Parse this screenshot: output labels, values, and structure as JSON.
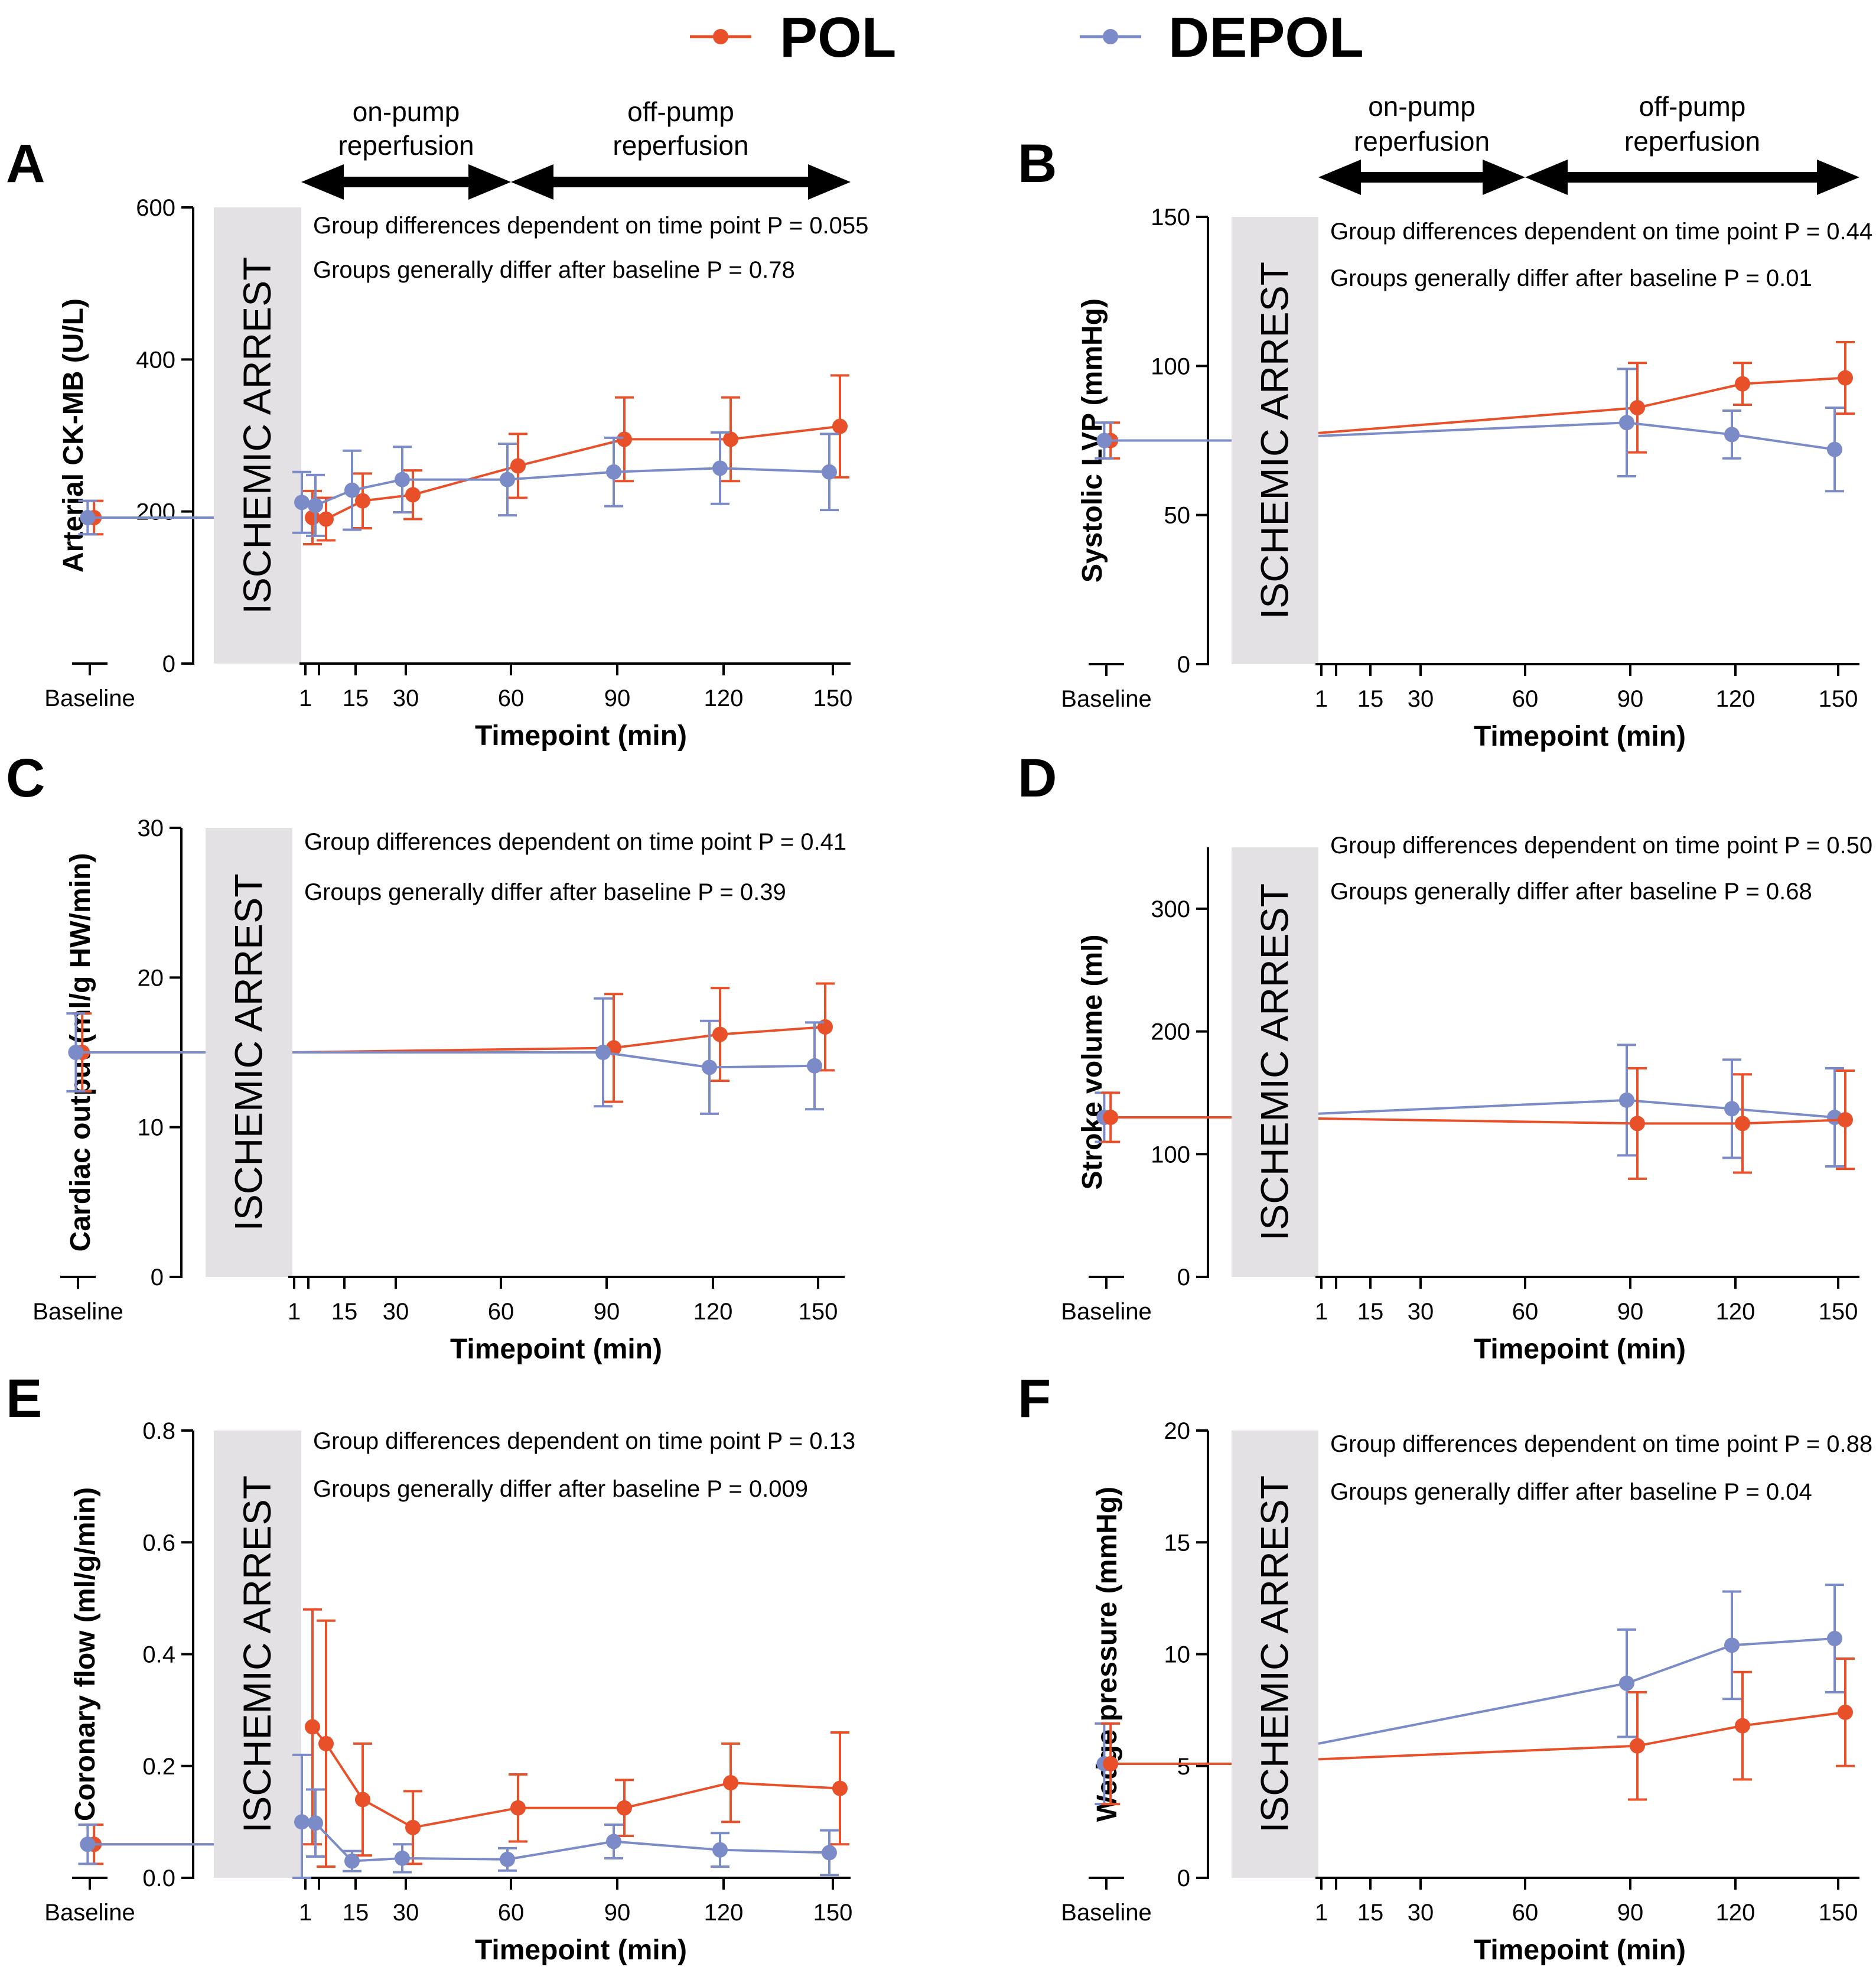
{
  "legend": {
    "pol": {
      "label": "POL",
      "color": "#e8502a"
    },
    "depol": {
      "label": "DEPOL",
      "color": "#7b8bc8"
    }
  },
  "colors": {
    "arrest_box": "#e3e1e4",
    "pol": "#e8502a",
    "depol": "#7b8bc8"
  },
  "shared": {
    "arrest_label": "ISCHEMIC ARREST",
    "xlabel": "Timepoint (min)",
    "on_pump_label": [
      "on-pump",
      "reperfusion"
    ],
    "off_pump_label": [
      "off-pump",
      "reperfusion"
    ],
    "ann_prefix_time": "Group differences dependent on time point",
    "ann_prefix_base": "Groups generally differ after baseline"
  },
  "chart_data": [
    {
      "panel": "A",
      "type": "line",
      "xcfg": 1,
      "arrows": true,
      "ylabel": "Arterial CK-MB (U/L)",
      "ylim": [
        0,
        600
      ],
      "yticks": [
        0,
        200,
        400,
        600
      ],
      "yticklabels": [
        "0",
        "200",
        "400",
        "600"
      ],
      "p_time": "P = 0.055",
      "p_base": "P = 0.78",
      "xticks": [
        "Baseline",
        "1",
        "15",
        "30",
        "60",
        "90",
        "120",
        "150"
      ],
      "series": [
        {
          "name": "POL",
          "color": "#e8502a",
          "baseline": [
            192,
            22
          ],
          "x": [
            1,
            10,
            15,
            30,
            60,
            90,
            120,
            150
          ],
          "y": [
            192,
            190,
            214,
            222,
            260,
            295,
            295,
            312
          ],
          "err": [
            35,
            28,
            36,
            32,
            42,
            55,
            55,
            67
          ]
        },
        {
          "name": "DEPOL",
          "color": "#7b8bc8",
          "baseline": [
            192,
            22
          ],
          "x": [
            1,
            10,
            15,
            30,
            60,
            90,
            120,
            150
          ],
          "y": [
            212,
            208,
            228,
            242,
            242,
            252,
            257,
            252
          ],
          "err": [
            40,
            40,
            52,
            43,
            47,
            45,
            47,
            50
          ]
        }
      ]
    },
    {
      "panel": "B",
      "type": "line",
      "xcfg": 2,
      "arrows": true,
      "ylabel": "Systolic LVP (mmHg)",
      "ylim": [
        0,
        150
      ],
      "yticks": [
        0,
        50,
        100,
        150
      ],
      "yticklabels": [
        "0",
        "50",
        "100",
        "150"
      ],
      "p_time": "P = 0.44",
      "p_base": "P = 0.01",
      "xticks": [
        "Baseline",
        "1",
        "15",
        "30",
        "60",
        "90",
        "120",
        "150"
      ],
      "series": [
        {
          "name": "POL",
          "color": "#e8502a",
          "baseline": [
            75,
            6
          ],
          "start": 77.5,
          "x": [
            90,
            120,
            150
          ],
          "y": [
            86,
            94,
            96
          ],
          "err": [
            15,
            7,
            12
          ]
        },
        {
          "name": "DEPOL",
          "color": "#7b8bc8",
          "baseline": [
            75,
            6
          ],
          "start": 76.5,
          "x": [
            90,
            120,
            150
          ],
          "y": [
            81,
            77,
            72
          ],
          "err": [
            18,
            8,
            14
          ]
        }
      ]
    },
    {
      "panel": "C",
      "type": "line",
      "xcfg": 3,
      "arrows": false,
      "ylabel": "Cardiac output (ml/g HW/min)",
      "ylim": [
        0,
        30
      ],
      "yticks": [
        0,
        10,
        20,
        30
      ],
      "yticklabels": [
        "0",
        "10",
        "20",
        "30"
      ],
      "p_time": "P = 0.41",
      "p_base": "P = 0.39",
      "xticks": [
        "Baseline",
        "1",
        "15",
        "30",
        "60",
        "90",
        "120",
        "150"
      ],
      "series": [
        {
          "name": "POL",
          "color": "#e8502a",
          "baseline": [
            15,
            2.6
          ],
          "start": 15,
          "x": [
            90,
            120,
            150
          ],
          "y": [
            15.3,
            16.2,
            16.7
          ],
          "err": [
            3.6,
            3.1,
            2.9
          ]
        },
        {
          "name": "DEPOL",
          "color": "#7b8bc8",
          "baseline": [
            15,
            2.6
          ],
          "start": 15,
          "x": [
            90,
            120,
            150
          ],
          "y": [
            15,
            14,
            14.1
          ],
          "err": [
            3.6,
            3.1,
            2.9
          ]
        }
      ]
    },
    {
      "panel": "D",
      "type": "line",
      "xcfg": 2,
      "arrows": false,
      "ylabel": "Stroke volume (ml)",
      "ylim": [
        0,
        350
      ],
      "yticks": [
        0,
        100,
        200,
        300
      ],
      "yticklabels": [
        "0",
        "100",
        "200",
        "300"
      ],
      "p_time": "P = 0.50",
      "p_base": "P = 0.68",
      "xticks": [
        "Baseline",
        "1",
        "15",
        "30",
        "60",
        "90",
        "120",
        "150"
      ],
      "series": [
        {
          "name": "DEPOL",
          "color": "#7b8bc8",
          "baseline": [
            130,
            20
          ],
          "start": 133,
          "x": [
            90,
            120,
            150
          ],
          "y": [
            144,
            137,
            130
          ],
          "err": [
            45,
            40,
            40
          ]
        },
        {
          "name": "POL",
          "color": "#e8502a",
          "baseline": [
            130,
            20
          ],
          "start": 129,
          "x": [
            90,
            120,
            150
          ],
          "y": [
            125,
            125,
            128
          ],
          "err": [
            45,
            40,
            40
          ]
        }
      ]
    },
    {
      "panel": "E",
      "type": "line",
      "xcfg": 1,
      "arrows": false,
      "ylabel": "Coronary flow (ml/g/min)",
      "ylim": [
        0,
        0.8
      ],
      "yticks": [
        0,
        0.2,
        0.4,
        0.6,
        0.8
      ],
      "yticklabels": [
        "0.0",
        "0.2",
        "0.4",
        "0.6",
        "0.8"
      ],
      "p_time": "P = 0.13",
      "p_base": "P = 0.009",
      "xticks": [
        "Baseline",
        "1",
        "15",
        "30",
        "60",
        "90",
        "120",
        "150"
      ],
      "series": [
        {
          "name": "POL",
          "color": "#e8502a",
          "baseline": [
            0.06,
            0.035
          ],
          "x": [
            1,
            10,
            15,
            30,
            60,
            90,
            120,
            150
          ],
          "y": [
            0.27,
            0.24,
            0.14,
            0.09,
            0.125,
            0.125,
            0.17,
            0.16
          ],
          "err": [
            0.21,
            0.22,
            0.1,
            0.065,
            0.06,
            0.05,
            0.07,
            0.1
          ]
        },
        {
          "name": "DEPOL",
          "color": "#7b8bc8",
          "baseline": [
            0.06,
            0.035
          ],
          "x": [
            1,
            10,
            15,
            30,
            60,
            90,
            120,
            150
          ],
          "y": [
            0.1,
            0.098,
            0.03,
            0.035,
            0.033,
            0.065,
            0.05,
            0.045
          ],
          "err": [
            0.12,
            0.06,
            0.018,
            0.025,
            0.02,
            0.03,
            0.03,
            0.04
          ]
        }
      ]
    },
    {
      "panel": "F",
      "type": "line",
      "xcfg": 2,
      "arrows": false,
      "ylabel": "Wedge pressure (mmHg)",
      "ylim": [
        0,
        20
      ],
      "yticks": [
        0,
        5,
        10,
        15,
        20
      ],
      "yticklabels": [
        "0",
        "5",
        "10",
        "15",
        "20"
      ],
      "p_time": "P = 0.88",
      "p_base": "P = 0.04",
      "xticks": [
        "Baseline",
        "1",
        "15",
        "30",
        "60",
        "90",
        "120",
        "150"
      ],
      "series": [
        {
          "name": "DEPOL",
          "color": "#7b8bc8",
          "baseline": [
            5.1,
            1.8
          ],
          "start": 6,
          "x": [
            90,
            120,
            150
          ],
          "y": [
            8.7,
            10.4,
            10.7
          ],
          "err": [
            2.4,
            2.4,
            2.4
          ]
        },
        {
          "name": "POL",
          "color": "#e8502a",
          "baseline": [
            5.1,
            1.8
          ],
          "start": 5.3,
          "x": [
            90,
            120,
            150
          ],
          "y": [
            5.9,
            6.8,
            7.4
          ],
          "err": [
            2.4,
            2.4,
            2.4
          ]
        }
      ]
    }
  ]
}
